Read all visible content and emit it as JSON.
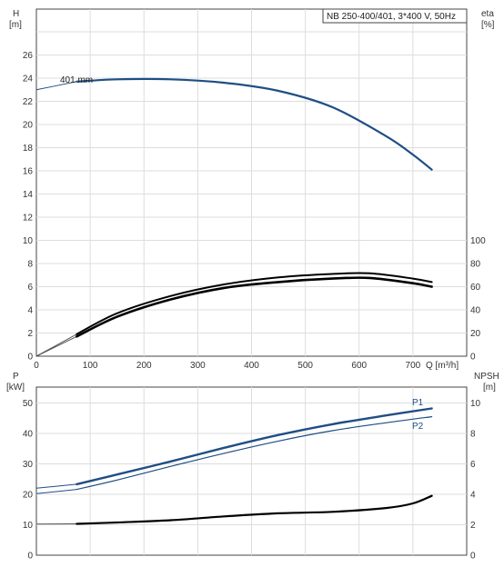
{
  "colors": {
    "curve_blue": "#1f4e84",
    "curve_black": "#000000",
    "thin_line": "#888888",
    "grid": "#dddddd",
    "axis": "#333333",
    "frame": "#444444"
  },
  "chart_data": [
    {
      "type": "line",
      "title": "NB 250-400/401, 3*400 V, 50Hz",
      "left_axis": {
        "label_line1": "H",
        "label_line2": "[m]",
        "lim": [
          0,
          28
        ],
        "ticks": [
          "0",
          "2",
          "4",
          "6",
          "8",
          "10",
          "12",
          "14",
          "16",
          "18",
          "20",
          "22",
          "24",
          "26"
        ]
      },
      "right_axis": {
        "label_line1": "eta",
        "label_line2": "[%]",
        "lim": [
          0,
          100
        ],
        "ticks": [
          "0",
          "20",
          "40",
          "60",
          "80",
          "100"
        ]
      },
      "x_axis": {
        "label": "Q [m³/h]",
        "lim": [
          0,
          800
        ],
        "ticks": [
          "0",
          "100",
          "200",
          "300",
          "400",
          "500",
          "600",
          "700"
        ]
      },
      "grid": true,
      "annotation": "401 mm",
      "series": [
        {
          "name": "",
          "axis": "left",
          "kind": "H",
          "color": "#1f4e84",
          "x": [
            0,
            75,
            150,
            250,
            350,
            450,
            550,
            650,
            700,
            735
          ],
          "y": [
            23.0,
            23.7,
            23.9,
            23.9,
            23.6,
            22.9,
            21.5,
            19.0,
            17.4,
            16.1
          ]
        },
        {
          "name": "",
          "axis": "right",
          "kind": "eta-upper",
          "color": "#000000",
          "x": [
            0,
            75,
            150,
            250,
            350,
            450,
            550,
            620,
            700,
            735
          ],
          "y": [
            0,
            19,
            37,
            52,
            62,
            68,
            71,
            71.5,
            67,
            64
          ]
        },
        {
          "name": "",
          "axis": "right",
          "kind": "eta-lower",
          "color": "#000000",
          "x": [
            0,
            75,
            150,
            250,
            350,
            450,
            550,
            620,
            700,
            735
          ],
          "y": [
            0,
            17,
            34,
            49,
            59,
            64,
            67,
            67.5,
            63,
            60
          ]
        }
      ]
    },
    {
      "type": "line",
      "left_axis": {
        "label_line1": "P",
        "label_line2": "[kW]",
        "lim": [
          0,
          54
        ],
        "ticks": [
          "0",
          "10",
          "20",
          "30",
          "40",
          "50"
        ]
      },
      "right_axis": {
        "label_line1": "NPSH",
        "label_line2": "[m]",
        "lim": [
          0,
          10.8
        ],
        "ticks": [
          "0",
          "2",
          "4",
          "6",
          "8",
          "10"
        ]
      },
      "grid": true,
      "series": [
        {
          "name": "P1",
          "axis": "left",
          "color": "#1f4e84",
          "x": [
            0,
            75,
            150,
            250,
            350,
            450,
            550,
            650,
            735
          ],
          "y": [
            22,
            23.3,
            26.5,
            30.8,
            35.3,
            39.5,
            43.0,
            45.9,
            48.2
          ]
        },
        {
          "name": "P2",
          "axis": "left",
          "color": "#1f4e84",
          "x": [
            0,
            75,
            150,
            250,
            350,
            450,
            550,
            650,
            735
          ],
          "y": [
            20.2,
            21.6,
            24.7,
            29.2,
            33.5,
            37.5,
            40.9,
            43.5,
            45.5
          ]
        },
        {
          "name": "",
          "axis": "right",
          "kind": "NPSH",
          "color": "#000000",
          "x": [
            0,
            75,
            150,
            250,
            350,
            450,
            550,
            650,
            700,
            735
          ],
          "y": [
            2.05,
            2.06,
            2.15,
            2.3,
            2.55,
            2.75,
            2.85,
            3.1,
            3.4,
            3.9
          ]
        }
      ]
    }
  ]
}
